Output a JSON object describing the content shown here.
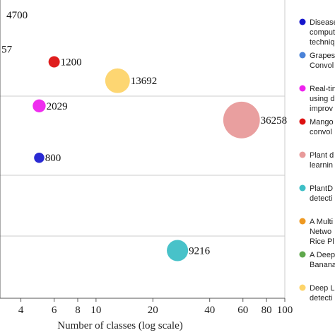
{
  "chart_data": {
    "type": "scatter",
    "xlabel": "Number of classes (log scale)",
    "x_scale": "log",
    "xlim": [
      3.1,
      100
    ],
    "x_ticks": [
      {
        "value": 4,
        "label": "4"
      },
      {
        "value": 6,
        "label": "6"
      },
      {
        "value": 8,
        "label": "8"
      },
      {
        "value": 10,
        "label": "10"
      },
      {
        "value": 20,
        "label": "20"
      },
      {
        "value": 40,
        "label": "40"
      },
      {
        "value": 60,
        "label": "60"
      },
      {
        "value": 80,
        "label": "80"
      },
      {
        "value": 100,
        "label": "100"
      }
    ],
    "grid": true,
    "legend_position": "right",
    "points": [
      {
        "x": 5,
        "row": 4.05,
        "label": "800",
        "size": 800,
        "color": "#1f1fd1"
      },
      {
        "x": 5,
        "row": 2.4,
        "label": "2029",
        "size": 2029,
        "color": "#ee22ee"
      },
      {
        "x": 6,
        "row": 1.0,
        "label": "1200",
        "size": 1200,
        "color": "#dd1111"
      },
      {
        "x": 13,
        "row": 1.6,
        "label": "13692",
        "size": 13692,
        "color": "#fdd46a"
      },
      {
        "x": 59,
        "row": 2.85,
        "label": "36258",
        "size": 36258,
        "color": "#e89a9a"
      },
      {
        "x": 27,
        "row": 7.0,
        "label": "9216",
        "size": 9216,
        "color": "#3ebfc6"
      },
      {
        "x": 3.0,
        "row": -0.5,
        "label": "4700",
        "size": 4700,
        "color": "#1f1fd1"
      },
      {
        "x": 3.0,
        "row": 0.6,
        "label": "57",
        "size": 57,
        "color": "#1f1fd1"
      }
    ],
    "legend": [
      {
        "label": "Disease",
        "label2": "comput",
        "label3": "techniq",
        "color": "#1515cc"
      },
      {
        "label": "Grapes",
        "label2": "Convol",
        "color": "#4a82d8"
      },
      {
        "label": "Real-tin",
        "label2": "using d",
        "label3": "improv",
        "color": "#ee22ee"
      },
      {
        "label": "Mango",
        "label2": "convol",
        "color": "#dd1111"
      },
      {
        "label": "Plant d",
        "label2": "learnin",
        "color": "#e89a9a"
      },
      {
        "label": "PlantD",
        "label2": "detecti",
        "color": "#3ebfc6"
      },
      {
        "label": "A Multi",
        "label2": "Netwo",
        "label3": "Rice Pl",
        "color": "#ee9922"
      },
      {
        "label": "A Deep",
        "label2": "Banana",
        "color": "#5fa84c"
      },
      {
        "label": "Deep L",
        "label2": "detecti",
        "color": "#fdd46a"
      }
    ]
  }
}
